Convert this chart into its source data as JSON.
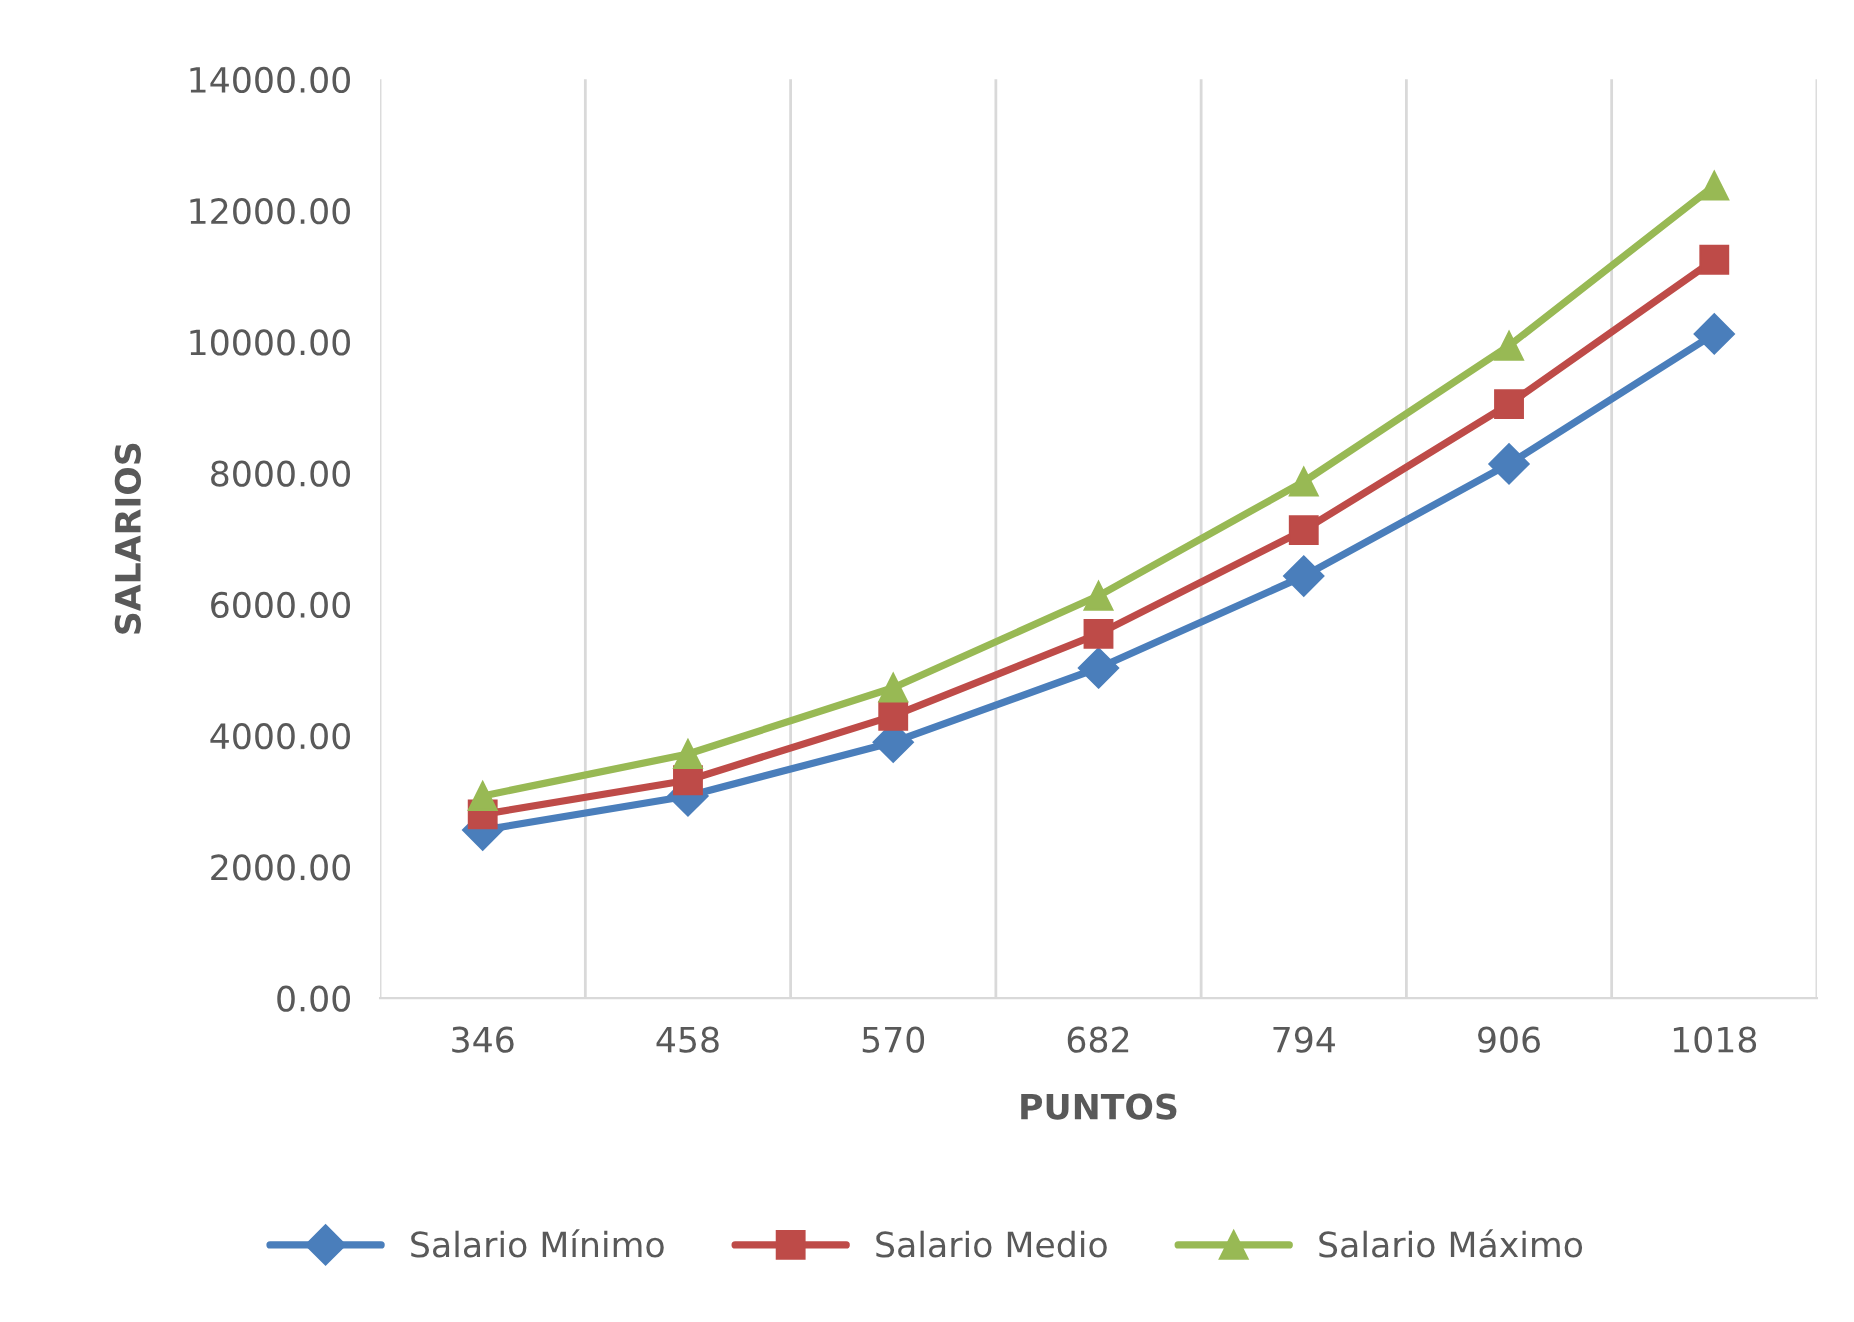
{
  "chart_data": {
    "type": "line",
    "xlabel": "PUNTOS",
    "ylabel": "SALARIOS",
    "categories": [
      "346",
      "458",
      "570",
      "682",
      "794",
      "906",
      "1018"
    ],
    "series": [
      {
        "name": "Salario Mínimo",
        "color": "#4a7ebb",
        "marker": "diamond",
        "values": [
          2560,
          3080,
          3900,
          5030,
          6430,
          8140,
          10120
        ]
      },
      {
        "name": "Salario Medio",
        "color": "#be4b48",
        "marker": "square",
        "values": [
          2800,
          3320,
          4300,
          5550,
          7130,
          9050,
          11250
        ]
      },
      {
        "name": "Salario Máximo",
        "color": "#98b954",
        "marker": "triangle",
        "values": [
          3080,
          3720,
          4730,
          6130,
          7870,
          9940,
          12380
        ]
      }
    ],
    "ylim": [
      0,
      14000
    ],
    "yticks": [
      {
        "value": 0,
        "label": "0.00"
      },
      {
        "value": 2000,
        "label": "2000.00"
      },
      {
        "value": 4000,
        "label": "4000.00"
      },
      {
        "value": 6000,
        "label": "6000.00"
      },
      {
        "value": 8000,
        "label": "8000.00"
      },
      {
        "value": 10000,
        "label": "10000.00"
      },
      {
        "value": 12000,
        "label": "12000.00"
      },
      {
        "value": 14000,
        "label": "14000.00"
      }
    ],
    "grid": "x",
    "legend": "bottom",
    "line_style": "solid"
  }
}
